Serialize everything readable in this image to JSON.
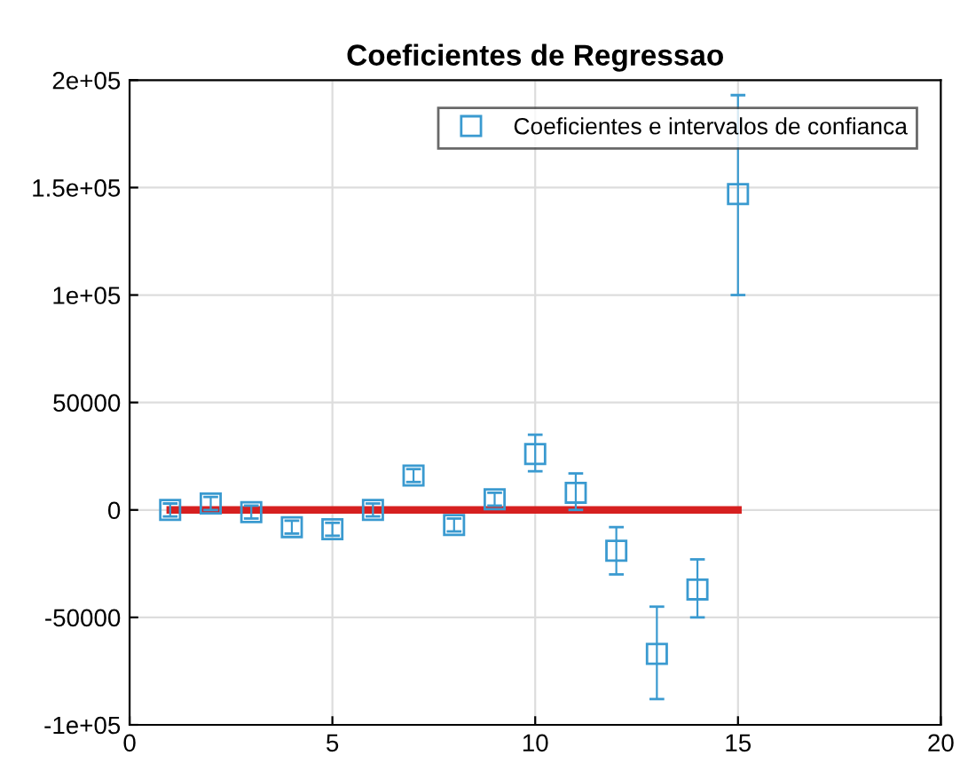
{
  "chart_data": {
    "type": "scatter",
    "title": "Coeficientes de Regressao",
    "x": [
      1,
      2,
      3,
      4,
      5,
      6,
      7,
      8,
      9,
      10,
      11,
      12,
      13,
      14,
      15
    ],
    "series": [
      {
        "name": "Coeficientes e intervalos de confianca",
        "color": "#3a9ad0",
        "marker": "square",
        "values": [
          0,
          3000,
          -1000,
          -8000,
          -9000,
          0,
          16000,
          -7000,
          5000,
          26000,
          8000,
          -19000,
          -67000,
          -37000,
          147000
        ],
        "errors": [
          3000,
          3000,
          3000,
          3000,
          3000,
          3000,
          3000,
          3000,
          3000,
          [
            18000,
            35000
          ],
          [
            0,
            17000
          ],
          [
            -30000,
            -8000
          ],
          [
            -88000,
            -45000
          ],
          [
            -50000,
            -23000
          ],
          [
            100000,
            193000
          ]
        ]
      },
      {
        "type": "line",
        "color": "#d62020",
        "x": [
          1,
          15
        ],
        "values": [
          0,
          0
        ],
        "marker": "none"
      }
    ],
    "xlim": [
      0,
      20
    ],
    "xticks": [
      0,
      5,
      10,
      15,
      20
    ],
    "ylim": [
      -100000,
      200000
    ],
    "yticks": [
      {
        "value": -100000,
        "label": "-1e+05"
      },
      -50000,
      0,
      50000,
      {
        "value": 100000,
        "label": "1e+05"
      },
      {
        "value": 150000,
        "label": "1.5e+05"
      },
      {
        "value": 200000,
        "label": "2e+05"
      }
    ],
    "grid": true,
    "legend": "top right"
  }
}
